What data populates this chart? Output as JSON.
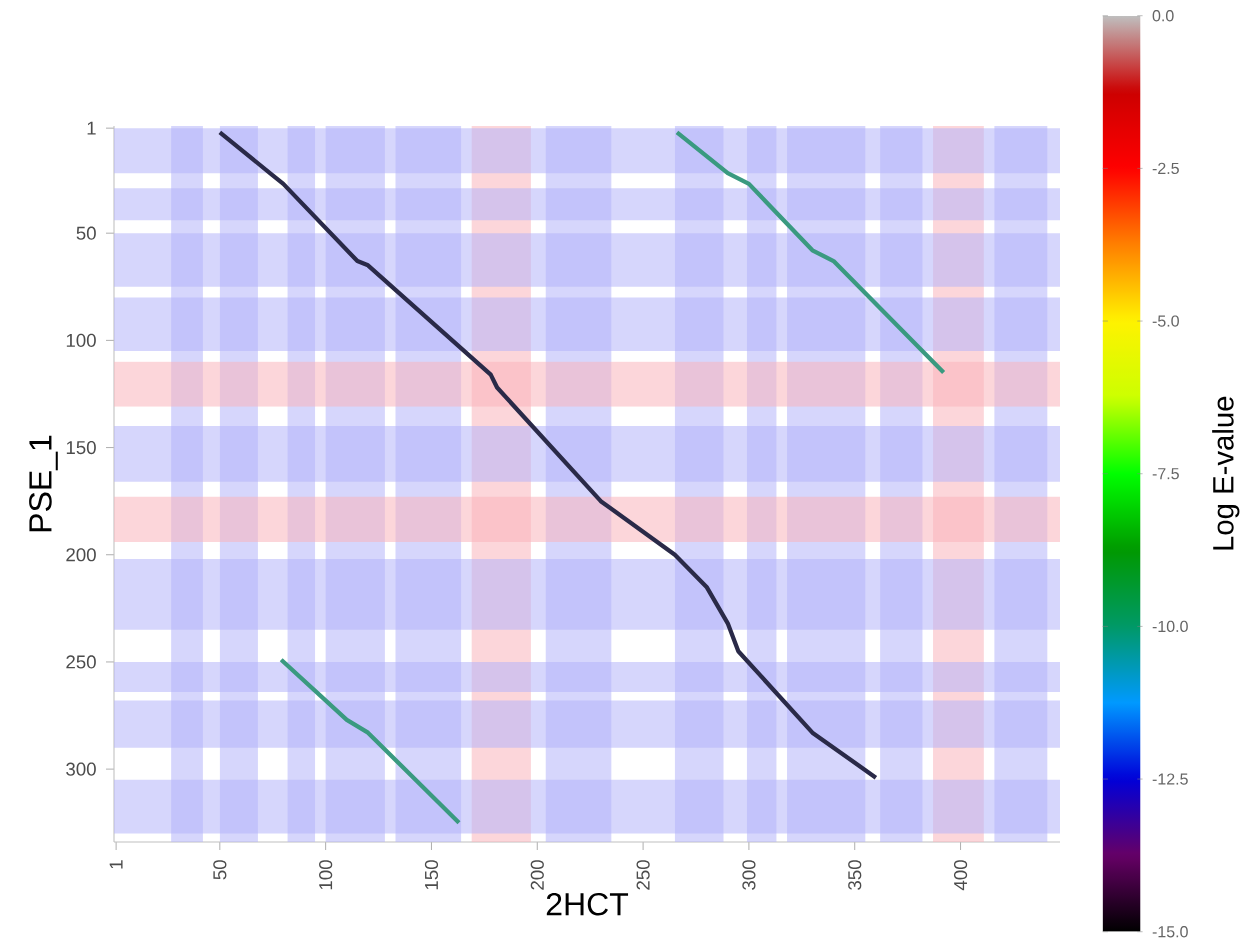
{
  "chart_data": {
    "type": "line",
    "xlabel": "2HCT",
    "ylabel": "PSE_1",
    "clabel": "Log E-value",
    "xlim": [
      0,
      447
    ],
    "ylim": [
      334,
      0
    ],
    "xticks": [
      1,
      50,
      100,
      150,
      200,
      250,
      300,
      350,
      400
    ],
    "yticks": [
      1,
      50,
      100,
      150,
      200,
      250,
      300
    ],
    "clim": [
      -15,
      0
    ],
    "cticks": [
      {
        "value": 0,
        "label": "0.0"
      },
      {
        "value": -2.5,
        "label": "-2.5"
      },
      {
        "value": -5,
        "label": "-5.0"
      },
      {
        "value": -7.5,
        "label": "-7.5"
      },
      {
        "value": -10,
        "label": "-10.0"
      },
      {
        "value": -12.5,
        "label": "-12.5"
      },
      {
        "value": -15,
        "label": "-15.0"
      }
    ],
    "series": [
      {
        "x": [
          50,
          75,
          80,
          115,
          120,
          178,
          181,
          230,
          265,
          280,
          290,
          295,
          330,
          360
        ],
        "values": [
          3,
          23,
          27,
          63,
          65,
          116,
          122,
          175,
          200,
          215,
          232,
          245,
          283,
          304
        ],
        "color": "#2a2a48"
      },
      {
        "x": [
          266,
          290,
          300,
          330,
          340,
          392
        ],
        "values": [
          3,
          22,
          27,
          58,
          63,
          115
        ],
        "color": "#3a9a80"
      },
      {
        "x": [
          79,
          110,
          120,
          163
        ],
        "values": [
          249,
          277,
          283,
          325
        ],
        "color": "#3a9a80"
      }
    ],
    "bands": [
      {
        "axis": "x",
        "from": 27,
        "to": 42,
        "color": "#b4b4fa"
      },
      {
        "axis": "x",
        "from": 50,
        "to": 68,
        "color": "#b4b4fa"
      },
      {
        "axis": "x",
        "from": 82,
        "to": 95,
        "color": "#b4b4fa"
      },
      {
        "axis": "x",
        "from": 100,
        "to": 128,
        "color": "#b4b4fa"
      },
      {
        "axis": "x",
        "from": 133,
        "to": 164,
        "color": "#b4b4fa"
      },
      {
        "axis": "x",
        "from": 169,
        "to": 197,
        "color": "#fab4bc"
      },
      {
        "axis": "x",
        "from": 204,
        "to": 235,
        "color": "#b4b4fa"
      },
      {
        "axis": "x",
        "from": 265,
        "to": 288,
        "color": "#b4b4fa"
      },
      {
        "axis": "x",
        "from": 299,
        "to": 313,
        "color": "#b4b4fa"
      },
      {
        "axis": "x",
        "from": 318,
        "to": 355,
        "color": "#b4b4fa"
      },
      {
        "axis": "x",
        "from": 362,
        "to": 382,
        "color": "#b4b4fa"
      },
      {
        "axis": "x",
        "from": 387,
        "to": 411,
        "color": "#fab4bc"
      },
      {
        "axis": "x",
        "from": 416,
        "to": 441,
        "color": "#b4b4fa"
      },
      {
        "axis": "y",
        "from": 1,
        "to": 22,
        "color": "#b4b4fa"
      },
      {
        "axis": "y",
        "from": 29,
        "to": 44,
        "color": "#b4b4fa"
      },
      {
        "axis": "y",
        "from": 50,
        "to": 75,
        "color": "#b4b4fa"
      },
      {
        "axis": "y",
        "from": 80,
        "to": 105,
        "color": "#b4b4fa"
      },
      {
        "axis": "y",
        "from": 110,
        "to": 131,
        "color": "#fab4bc"
      },
      {
        "axis": "y",
        "from": 140,
        "to": 166,
        "color": "#b4b4fa"
      },
      {
        "axis": "y",
        "from": 173,
        "to": 194,
        "color": "#fab4bc"
      },
      {
        "axis": "y",
        "from": 202,
        "to": 235,
        "color": "#b4b4fa"
      },
      {
        "axis": "y",
        "from": 250,
        "to": 264,
        "color": "#b4b4fa"
      },
      {
        "axis": "y",
        "from": 268,
        "to": 290,
        "color": "#b4b4fa"
      },
      {
        "axis": "y",
        "from": 305,
        "to": 330,
        "color": "#b4b4fa"
      }
    ]
  }
}
